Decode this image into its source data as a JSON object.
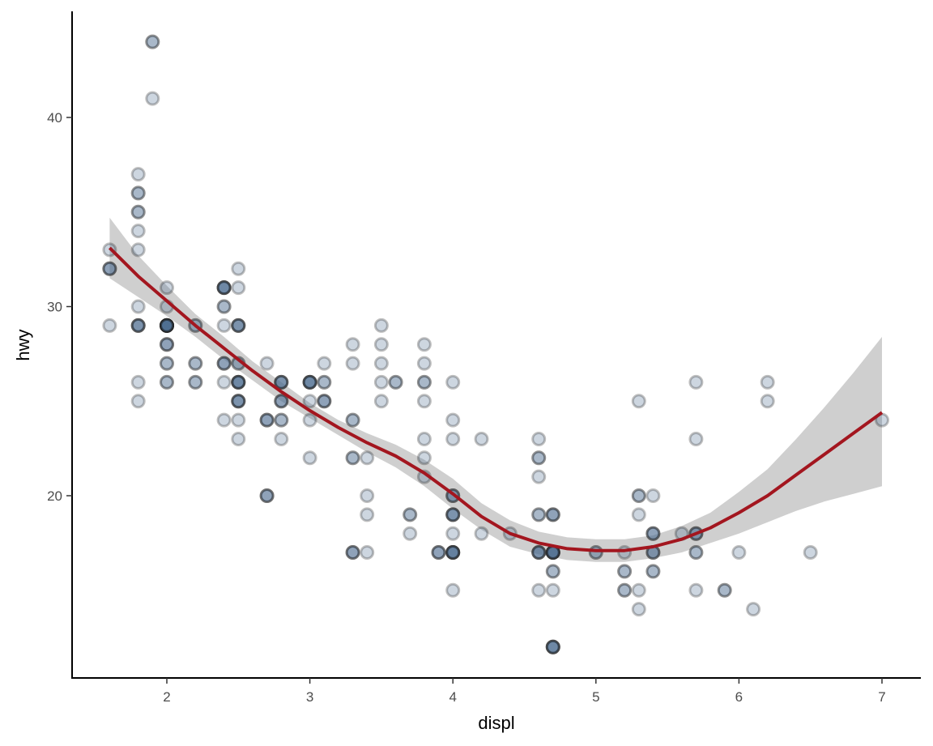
{
  "chart_data": {
    "type": "scatter",
    "title": "",
    "xlabel": "displ",
    "ylabel": "hwy",
    "xlim": [
      1.33,
      7.27
    ],
    "ylim": [
      10.4,
      45.6
    ],
    "x_ticks": [
      2,
      3,
      4,
      5,
      6,
      7
    ],
    "y_ticks": [
      20,
      30,
      40
    ],
    "grid": false,
    "legend": "none",
    "colors": {
      "point_fill": "#4a6a8f",
      "point_stroke": "#1c1c1c",
      "point_alpha": 0.28,
      "smooth_line": "#a3161f",
      "confidence_band": "#cfcfcf",
      "axis": "#000000"
    },
    "points": [
      [
        1.8,
        29
      ],
      [
        1.8,
        29
      ],
      [
        2.0,
        31
      ],
      [
        2.0,
        30
      ],
      [
        2.8,
        26
      ],
      [
        2.8,
        26
      ],
      [
        3.1,
        27
      ],
      [
        1.8,
        26
      ],
      [
        1.8,
        25
      ],
      [
        2.0,
        28
      ],
      [
        2.0,
        27
      ],
      [
        2.8,
        25
      ],
      [
        2.8,
        25
      ],
      [
        3.1,
        25
      ],
      [
        3.1,
        25
      ],
      [
        2.8,
        25
      ],
      [
        3.1,
        25
      ],
      [
        4.2,
        23
      ],
      [
        5.3,
        20
      ],
      [
        5.3,
        15
      ],
      [
        5.3,
        20
      ],
      [
        5.7,
        17
      ],
      [
        6.0,
        17
      ],
      [
        5.7,
        26
      ],
      [
        5.7,
        23
      ],
      [
        6.2,
        26
      ],
      [
        6.2,
        25
      ],
      [
        7.0,
        24
      ],
      [
        5.3,
        19
      ],
      [
        5.3,
        14
      ],
      [
        5.7,
        15
      ],
      [
        6.5,
        17
      ],
      [
        2.4,
        27
      ],
      [
        2.4,
        30
      ],
      [
        3.1,
        26
      ],
      [
        3.5,
        29
      ],
      [
        3.6,
        26
      ],
      [
        2.4,
        24
      ],
      [
        3.0,
        24
      ],
      [
        3.3,
        22
      ],
      [
        3.3,
        22
      ],
      [
        3.3,
        24
      ],
      [
        3.3,
        24
      ],
      [
        3.3,
        17
      ],
      [
        3.8,
        22
      ],
      [
        3.8,
        21
      ],
      [
        3.8,
        23
      ],
      [
        4.0,
        23
      ],
      [
        3.7,
        19
      ],
      [
        3.7,
        18
      ],
      [
        3.9,
        17
      ],
      [
        3.9,
        17
      ],
      [
        4.7,
        19
      ],
      [
        4.7,
        19
      ],
      [
        4.7,
        12
      ],
      [
        5.2,
        17
      ],
      [
        5.2,
        15
      ],
      [
        3.9,
        17
      ],
      [
        4.7,
        17
      ],
      [
        4.7,
        12
      ],
      [
        4.7,
        17
      ],
      [
        5.2,
        16
      ],
      [
        5.7,
        18
      ],
      [
        5.9,
        15
      ],
      [
        4.7,
        16
      ],
      [
        4.7,
        12
      ],
      [
        4.7,
        17
      ],
      [
        4.7,
        17
      ],
      [
        4.7,
        16
      ],
      [
        4.7,
        12
      ],
      [
        5.2,
        15
      ],
      [
        5.2,
        16
      ],
      [
        5.7,
        17
      ],
      [
        5.9,
        15
      ],
      [
        4.6,
        17
      ],
      [
        5.4,
        17
      ],
      [
        5.4,
        18
      ],
      [
        4.0,
        17
      ],
      [
        4.0,
        19
      ],
      [
        4.0,
        17
      ],
      [
        4.0,
        19
      ],
      [
        4.6,
        19
      ],
      [
        5.0,
        17
      ],
      [
        4.0,
        17
      ],
      [
        4.0,
        17
      ],
      [
        4.6,
        17
      ],
      [
        4.6,
        17
      ],
      [
        4.6,
        17
      ],
      [
        5.4,
        17
      ],
      [
        5.4,
        16
      ],
      [
        5.4,
        18
      ],
      [
        3.8,
        26
      ],
      [
        3.8,
        25
      ],
      [
        4.0,
        26
      ],
      [
        4.0,
        24
      ],
      [
        4.6,
        21
      ],
      [
        4.6,
        22
      ],
      [
        4.6,
        23
      ],
      [
        4.6,
        22
      ],
      [
        5.4,
        20
      ],
      [
        1.6,
        33
      ],
      [
        1.6,
        32
      ],
      [
        1.6,
        32
      ],
      [
        1.6,
        29
      ],
      [
        1.6,
        32
      ],
      [
        1.8,
        34
      ],
      [
        1.8,
        36
      ],
      [
        1.8,
        36
      ],
      [
        2.0,
        29
      ],
      [
        2.4,
        26
      ],
      [
        2.4,
        27
      ],
      [
        2.4,
        30
      ],
      [
        2.4,
        31
      ],
      [
        2.5,
        26
      ],
      [
        2.5,
        26
      ],
      [
        3.3,
        28
      ],
      [
        2.0,
        26
      ],
      [
        2.0,
        29
      ],
      [
        2.0,
        28
      ],
      [
        2.0,
        27
      ],
      [
        2.7,
        24
      ],
      [
        2.7,
        24
      ],
      [
        2.7,
        24
      ],
      [
        3.0,
        22
      ],
      [
        3.7,
        19
      ],
      [
        4.0,
        20
      ],
      [
        4.7,
        17
      ],
      [
        4.7,
        12
      ],
      [
        4.7,
        19
      ],
      [
        5.7,
        18
      ],
      [
        6.1,
        14
      ],
      [
        4.0,
        15
      ],
      [
        4.2,
        18
      ],
      [
        4.4,
        18
      ],
      [
        4.6,
        15
      ],
      [
        5.4,
        17
      ],
      [
        5.4,
        16
      ],
      [
        5.4,
        18
      ],
      [
        4.0,
        17
      ],
      [
        4.0,
        19
      ],
      [
        4.6,
        19
      ],
      [
        5.0,
        17
      ],
      [
        2.4,
        29
      ],
      [
        2.4,
        27
      ],
      [
        2.5,
        31
      ],
      [
        2.5,
        32
      ],
      [
        3.5,
        27
      ],
      [
        3.5,
        26
      ],
      [
        3.0,
        26
      ],
      [
        3.0,
        25
      ],
      [
        3.5,
        25
      ],
      [
        3.3,
        17
      ],
      [
        3.3,
        17
      ],
      [
        4.0,
        20
      ],
      [
        5.6,
        18
      ],
      [
        3.1,
        26
      ],
      [
        3.8,
        26
      ],
      [
        3.8,
        27
      ],
      [
        3.8,
        28
      ],
      [
        5.3,
        25
      ],
      [
        2.5,
        25
      ],
      [
        2.5,
        24
      ],
      [
        2.5,
        27
      ],
      [
        2.5,
        25
      ],
      [
        2.5,
        26
      ],
      [
        2.5,
        23
      ],
      [
        2.2,
        26
      ],
      [
        2.2,
        26
      ],
      [
        2.5,
        26
      ],
      [
        2.5,
        26
      ],
      [
        2.5,
        25
      ],
      [
        2.5,
        27
      ],
      [
        2.5,
        25
      ],
      [
        2.7,
        27
      ],
      [
        2.7,
        20
      ],
      [
        3.4,
        20
      ],
      [
        3.4,
        19
      ],
      [
        4.0,
        17
      ],
      [
        4.7,
        17
      ],
      [
        2.2,
        29
      ],
      [
        2.2,
        27
      ],
      [
        2.4,
        31
      ],
      [
        2.4,
        31
      ],
      [
        3.0,
        26
      ],
      [
        3.0,
        26
      ],
      [
        3.5,
        28
      ],
      [
        2.2,
        27
      ],
      [
        2.2,
        29
      ],
      [
        2.4,
        31
      ],
      [
        2.4,
        31
      ],
      [
        3.0,
        26
      ],
      [
        3.0,
        26
      ],
      [
        3.3,
        27
      ],
      [
        1.8,
        30
      ],
      [
        1.8,
        33
      ],
      [
        1.8,
        35
      ],
      [
        1.8,
        37
      ],
      [
        1.8,
        35
      ],
      [
        4.7,
        15
      ],
      [
        5.7,
        18
      ],
      [
        2.7,
        20
      ],
      [
        2.7,
        20
      ],
      [
        3.4,
        22
      ],
      [
        3.4,
        17
      ],
      [
        4.0,
        19
      ],
      [
        4.0,
        18
      ],
      [
        4.0,
        20
      ],
      [
        4.7,
        17
      ],
      [
        2.0,
        29
      ],
      [
        2.0,
        29
      ],
      [
        2.0,
        29
      ],
      [
        2.0,
        29
      ],
      [
        2.8,
        24
      ],
      [
        1.9,
        44
      ],
      [
        2.0,
        29
      ],
      [
        2.0,
        26
      ],
      [
        2.0,
        29
      ],
      [
        2.0,
        29
      ],
      [
        2.5,
        29
      ],
      [
        2.5,
        29
      ],
      [
        2.8,
        23
      ],
      [
        2.8,
        24
      ],
      [
        1.9,
        44
      ],
      [
        2.0,
        29
      ],
      [
        2.5,
        29
      ],
      [
        2.5,
        29
      ],
      [
        1.8,
        29
      ],
      [
        1.8,
        29
      ],
      [
        2.0,
        28
      ],
      [
        2.0,
        29
      ],
      [
        2.8,
        26
      ],
      [
        2.8,
        26
      ],
      [
        3.6,
        26
      ],
      [
        1.9,
        41
      ]
    ],
    "smooth": {
      "method": "loess",
      "x": [
        1.6,
        1.8,
        2.0,
        2.2,
        2.4,
        2.6,
        2.8,
        3.0,
        3.2,
        3.4,
        3.6,
        3.8,
        4.0,
        4.2,
        4.4,
        4.6,
        4.8,
        5.0,
        5.2,
        5.4,
        5.6,
        5.8,
        6.0,
        6.2,
        6.4,
        6.6,
        6.8,
        7.0
      ],
      "y": [
        33.1,
        31.6,
        30.3,
        29.0,
        27.8,
        26.6,
        25.5,
        24.5,
        23.6,
        22.8,
        22.1,
        21.2,
        20.1,
        18.9,
        18.0,
        17.5,
        17.2,
        17.1,
        17.1,
        17.3,
        17.7,
        18.3,
        19.1,
        20.0,
        21.1,
        22.2,
        23.3,
        24.4
      ],
      "ymin": [
        31.5,
        30.5,
        29.5,
        28.4,
        27.2,
        26.1,
        25.0,
        24.1,
        23.2,
        22.3,
        21.5,
        20.5,
        19.3,
        18.2,
        17.3,
        16.9,
        16.6,
        16.5,
        16.5,
        16.7,
        17.0,
        17.5,
        18.0,
        18.6,
        19.2,
        19.7,
        20.1,
        20.5
      ],
      "ymax": [
        34.7,
        32.7,
        31.1,
        29.6,
        28.4,
        27.1,
        26.0,
        24.9,
        24.0,
        23.3,
        22.7,
        21.9,
        20.9,
        19.6,
        18.7,
        18.1,
        17.8,
        17.7,
        17.7,
        17.9,
        18.4,
        19.1,
        20.2,
        21.4,
        23.0,
        24.7,
        26.5,
        28.4
      ]
    }
  }
}
